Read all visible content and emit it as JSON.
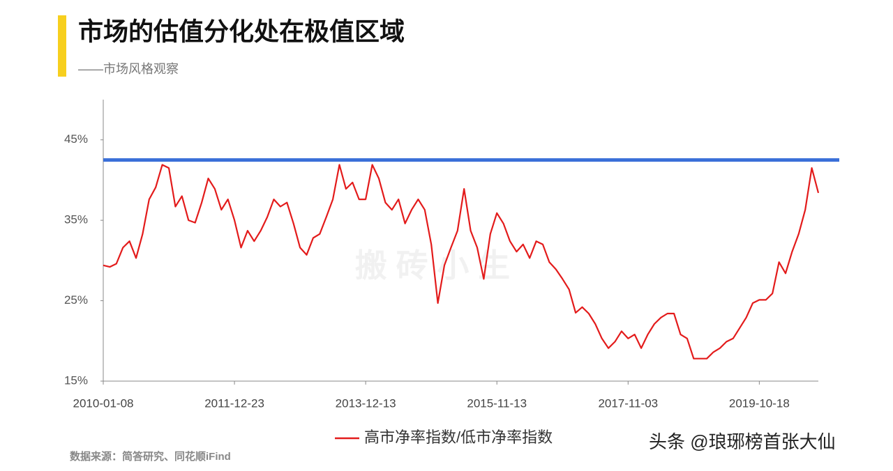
{
  "title": "市场的估值分化处在极值区域",
  "subtitle": "——市场风格观察",
  "source": "数据来源：简答研究、同花顺iFind",
  "watermark": "搬 砖 小 生",
  "credit": "头条 @琅琊榜首张大仙",
  "chart_data": {
    "type": "line",
    "categories": [
      "2010-01-08",
      null,
      null,
      null,
      null,
      null,
      null,
      null,
      null,
      null,
      null,
      null,
      null,
      null,
      null,
      null,
      null,
      null,
      null,
      null,
      "2011-12-23",
      null,
      null,
      null,
      null,
      null,
      null,
      null,
      null,
      null,
      null,
      null,
      null,
      null,
      null,
      null,
      null,
      null,
      null,
      null,
      "2013-12-13",
      null,
      null,
      null,
      null,
      null,
      null,
      null,
      null,
      null,
      null,
      null,
      null,
      null,
      null,
      null,
      null,
      null,
      null,
      null,
      "2015-11-13",
      null,
      null,
      null,
      null,
      null,
      null,
      null,
      null,
      null,
      null,
      null,
      null,
      null,
      null,
      null,
      null,
      null,
      null,
      null,
      "2017-11-03",
      null,
      null,
      null,
      null,
      null,
      null,
      null,
      null,
      null,
      null,
      null,
      null,
      null,
      null,
      null,
      null,
      null,
      null,
      null,
      "2019-10-18",
      null,
      null,
      null,
      null,
      null,
      null,
      null,
      null,
      null
    ],
    "series": [
      {
        "name": "高市净率指数/低市净率指数",
        "color": "#e31b1b",
        "values": [
          29.4,
          29.2,
          29.6,
          31.6,
          32.4,
          30.3,
          33.3,
          37.6,
          39.1,
          41.9,
          41.5,
          36.7,
          38.0,
          35.0,
          34.7,
          37.2,
          40.2,
          38.9,
          36.3,
          37.6,
          35.0,
          31.6,
          33.7,
          32.4,
          33.7,
          35.4,
          37.6,
          36.7,
          37.2,
          34.6,
          31.6,
          30.7,
          32.8,
          33.3,
          35.4,
          37.6,
          41.9,
          38.9,
          39.7,
          37.6,
          37.6,
          41.9,
          40.2,
          37.2,
          36.3,
          37.6,
          34.6,
          36.3,
          37.6,
          36.3,
          32.0,
          24.7,
          29.4,
          31.6,
          33.7,
          38.9,
          33.7,
          31.6,
          27.7,
          33.3,
          35.9,
          34.6,
          32.4,
          31.1,
          32.0,
          30.3,
          32.4,
          32.0,
          29.8,
          28.9,
          27.7,
          26.4,
          23.5,
          24.2,
          23.4,
          22.1,
          20.3,
          19.1,
          19.9,
          21.2,
          20.3,
          20.8,
          19.1,
          20.8,
          22.1,
          22.9,
          23.4,
          23.4,
          20.8,
          20.3,
          17.8,
          17.8,
          17.8,
          18.6,
          19.1,
          19.9,
          20.3,
          21.6,
          22.9,
          24.7,
          25.1,
          25.1,
          25.9,
          29.8,
          28.4,
          31.1,
          33.3,
          36.3,
          41.5,
          38.4
        ]
      }
    ],
    "reference_line": {
      "value": 42.5,
      "color": "#3a6fd8"
    },
    "ylim": [
      15,
      50
    ],
    "yticks": [
      {
        "value": 15,
        "label": "15%"
      },
      {
        "value": 25,
        "label": "25%"
      },
      {
        "value": 35,
        "label": "35%"
      },
      {
        "value": 45,
        "label": "45%"
      }
    ],
    "grid": false
  }
}
